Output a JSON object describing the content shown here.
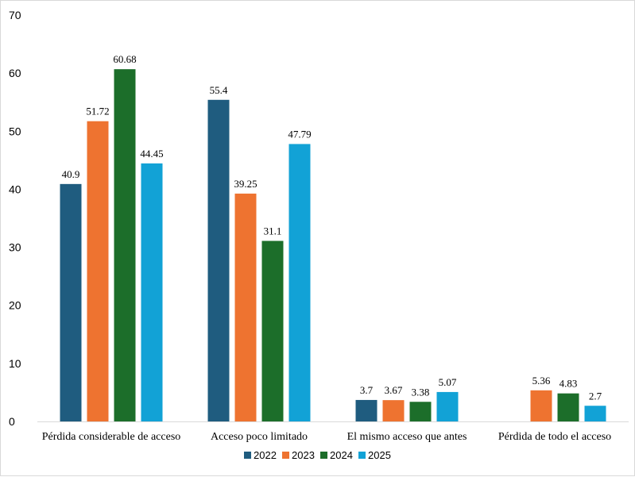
{
  "chart_data": {
    "type": "bar",
    "categories": [
      "Pérdida considerable de acceso",
      "Acceso poco limitado",
      "El mismo acceso que antes",
      "Pérdida de todo el acceso"
    ],
    "series": [
      {
        "name": "2022",
        "color": "#1f5c7f",
        "values": [
          40.9,
          55.4,
          3.7,
          null
        ]
      },
      {
        "name": "2023",
        "color": "#ee7330",
        "values": [
          51.72,
          39.25,
          3.67,
          5.36
        ]
      },
      {
        "name": "2024",
        "color": "#1c6e2a",
        "values": [
          60.68,
          31.1,
          3.38,
          4.83
        ]
      },
      {
        "name": "2025",
        "color": "#12a2d6",
        "values": [
          44.45,
          47.79,
          5.07,
          2.7
        ]
      }
    ],
    "yticks": [
      "0",
      "10",
      "20",
      "30",
      "40",
      "50",
      "60",
      "70"
    ],
    "ylim": [
      0,
      70
    ],
    "grid": false,
    "legend_position": "bottom",
    "title": "",
    "xlabel": "",
    "ylabel": ""
  }
}
